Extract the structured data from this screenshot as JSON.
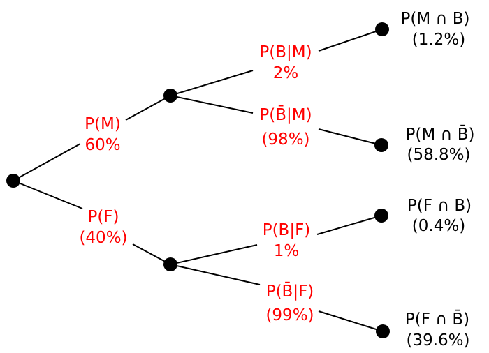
{
  "colors": {
    "branch_label": "#ff0000",
    "leaf_label": "#000000",
    "node": "#000000"
  },
  "branches": {
    "male": {
      "label": "P(M)",
      "value": "60%"
    },
    "female": {
      "label": "P(F)",
      "value": "(40%)"
    },
    "b_given_m": {
      "label": "P(B|M)",
      "value": "2%"
    },
    "notb_given_m": {
      "label": "P(B̄|M)",
      "value": "(98%)"
    },
    "b_given_f": {
      "label": "P(B|F)",
      "value": "1%"
    },
    "notb_given_f": {
      "label": "P(B̄|F)",
      "value": "(99%)"
    }
  },
  "leaves": {
    "m_and_b": {
      "label": "P(M ∩ B)",
      "value": "(1.2%)"
    },
    "m_and_notb": {
      "label": "P(M ∩ B̄)",
      "value": "(58.8%)"
    },
    "f_and_b": {
      "label": "P(F ∩ B)",
      "value": "(0.4%)"
    },
    "f_and_notb": {
      "label": "P(F ∩ B̄)",
      "value": "(39.6%)"
    }
  }
}
